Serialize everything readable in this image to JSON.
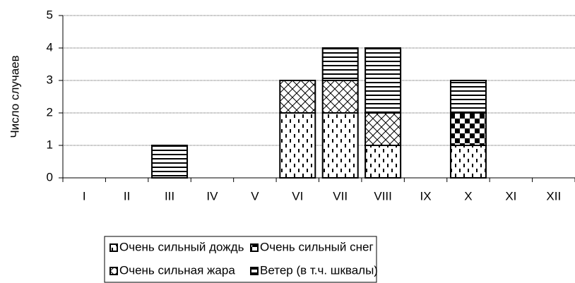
{
  "chart_data": {
    "type": "stacked-bar",
    "y_label": "Число случаев",
    "categories": [
      "I",
      "II",
      "III",
      "IV",
      "V",
      "VI",
      "VII",
      "VIII",
      "IX",
      "X",
      "XI",
      "XII"
    ],
    "series": [
      {
        "name": "Очень сильный дождь",
        "color": "#000000",
        "pattern": "dashes",
        "values": [
          0,
          0,
          0,
          0,
          0,
          2,
          2,
          1,
          0,
          1,
          0,
          0
        ]
      },
      {
        "name": "Очень сильный снег",
        "color": "#000000",
        "pattern": "checker",
        "values": [
          0,
          0,
          0,
          0,
          0,
          0,
          0,
          0,
          0,
          1,
          0,
          0
        ]
      },
      {
        "name": "Очень сильная жара",
        "color": "#000000",
        "pattern": "crosshatch",
        "values": [
          0,
          0,
          0,
          0,
          0,
          1,
          1,
          1,
          0,
          0,
          0,
          0
        ]
      },
      {
        "name": "Ветер (в т.ч. шквалы)",
        "color": "#000000",
        "pattern": "hlines",
        "values": [
          0,
          0,
          1,
          0,
          0,
          0,
          1,
          2,
          0,
          1,
          0,
          0
        ]
      }
    ],
    "ylim": [
      0,
      5
    ],
    "yticks": [
      0,
      1,
      2,
      3,
      4,
      5
    ],
    "grid": true,
    "legend": "bottom"
  }
}
